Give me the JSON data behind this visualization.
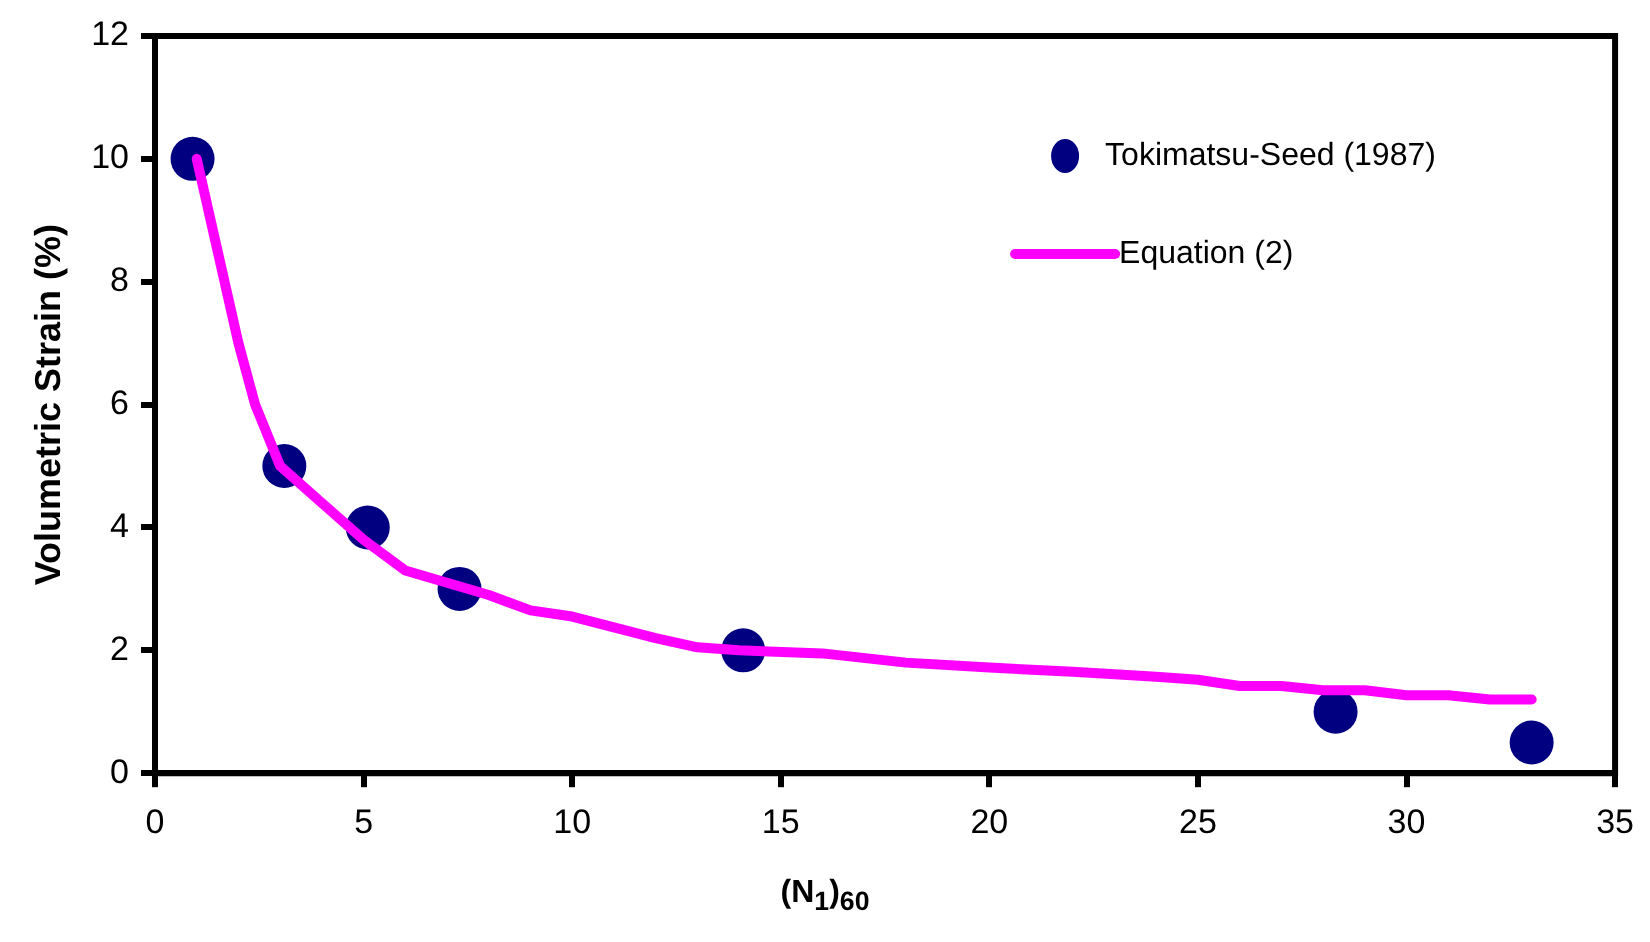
{
  "chart_data": {
    "type": "scatter",
    "xlabel": "(N$_{1}$)$_{60}$",
    "ylabel": "Volumetric Strain (%)",
    "xlim": [
      0,
      35
    ],
    "xticks": [
      0,
      5,
      10,
      15,
      20,
      25,
      30,
      35
    ],
    "ylim": [
      0,
      12
    ],
    "yticks": [
      0,
      2,
      4,
      6,
      8,
      10,
      12
    ],
    "grid": false,
    "legend": "top right",
    "marker": "circle",
    "series": [
      {
        "name": "Tokimatsu-Seed (1987)",
        "color": "#000080",
        "x": [
          0.9,
          3.1,
          5.1,
          7.3,
          14.1,
          28.3,
          33
        ],
        "values": [
          10,
          5,
          4,
          3,
          2,
          1,
          0.5
        ]
      },
      {
        "name": "Equation (2)",
        "type": "line",
        "color": "#ff00ff",
        "line_style": "solid",
        "marker": "none",
        "x": [
          1,
          2,
          2.4,
          3,
          4,
          5,
          6,
          7,
          8,
          9,
          10,
          12,
          13,
          14,
          16,
          18,
          20,
          22,
          24,
          25,
          26,
          27,
          28,
          29,
          30,
          31,
          32,
          33
        ],
        "values": [
          10,
          7,
          6,
          5,
          4.4,
          3.8,
          3.3,
          3.1,
          2.9,
          2.65,
          2.55,
          2.2,
          2.05,
          2,
          1.95,
          1.8,
          1.72,
          1.65,
          1.57,
          1.52,
          1.42,
          1.42,
          1.35,
          1.35,
          1.27,
          1.27,
          1.2,
          1.2
        ]
      }
    ]
  }
}
